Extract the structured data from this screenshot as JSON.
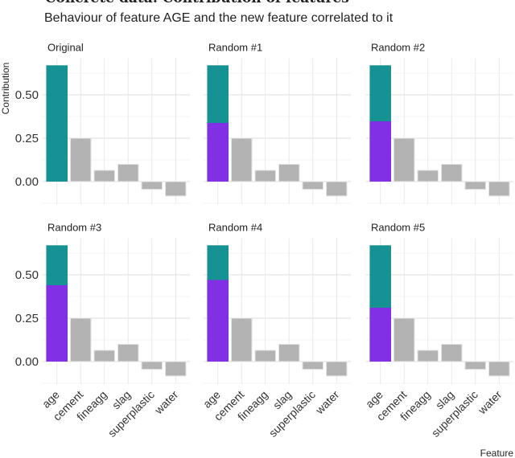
{
  "chart_data": {
    "type": "bar",
    "title": "Concrete data: Contribution of features",
    "subtitle": "Behaviour of feature AGE and the new feature correlated to it",
    "xlabel": "Feature",
    "ylabel": "Contribution",
    "ylim": [
      -0.13,
      0.71
    ],
    "yticks": [
      "0.00",
      "0.25",
      "0.50"
    ],
    "grid": true,
    "stacked": true,
    "categories": [
      "age",
      "cement",
      "fineagg",
      "slag",
      "superplastic",
      "water"
    ],
    "colors": {
      "age": "#169194",
      "random_feature": "#8230E6",
      "other": "#B3B3B3"
    },
    "panels": [
      {
        "name": "Original",
        "age_total": 0.67,
        "random_part": 0,
        "values": [
          0.67,
          0.25,
          0.065,
          0.1,
          -0.045,
          -0.083
        ]
      },
      {
        "name": "Random #1",
        "age_total": 0.67,
        "random_part": 0.338,
        "values": [
          0.67,
          0.25,
          0.065,
          0.1,
          -0.045,
          -0.083
        ]
      },
      {
        "name": "Random #2",
        "age_total": 0.67,
        "random_part": 0.347,
        "values": [
          0.67,
          0.25,
          0.065,
          0.1,
          -0.045,
          -0.083
        ]
      },
      {
        "name": "Random #3",
        "age_total": 0.67,
        "random_part": 0.44,
        "values": [
          0.67,
          0.25,
          0.065,
          0.1,
          -0.045,
          -0.083
        ]
      },
      {
        "name": "Random #4",
        "age_total": 0.67,
        "random_part": 0.47,
        "values": [
          0.67,
          0.25,
          0.065,
          0.1,
          -0.045,
          -0.083
        ]
      },
      {
        "name": "Random #5",
        "age_total": 0.67,
        "random_part": 0.31,
        "values": [
          0.67,
          0.25,
          0.065,
          0.1,
          -0.045,
          -0.083
        ]
      }
    ]
  }
}
